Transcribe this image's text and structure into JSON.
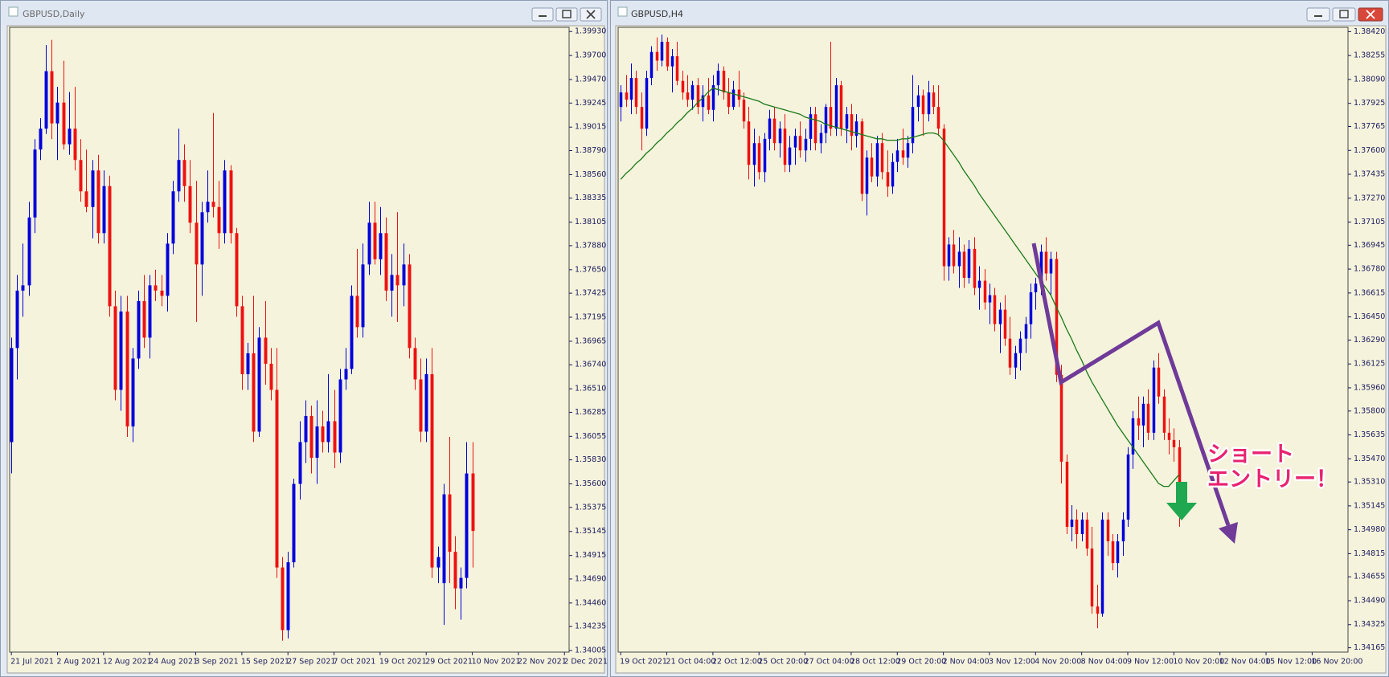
{
  "chart_data": [
    {
      "type": "candlestick",
      "title": "GBPUSD,Daily",
      "up_color": "#0000dd",
      "down_color": "#ee1111",
      "background": "#f5f3dc",
      "xlim": [
        -0.3,
        96.8
      ],
      "ylim": [
        1.3399,
        1.3997
      ],
      "xticks": [
        {
          "value": 0,
          "label": "21 Jul 2021"
        },
        {
          "value": 8,
          "label": "2 Aug 2021"
        },
        {
          "value": 16,
          "label": "12 Aug 2021"
        },
        {
          "value": 24,
          "label": "24 Aug 2021"
        },
        {
          "value": 32,
          "label": "3 Sep 2021"
        },
        {
          "value": 40,
          "label": "15 Sep 2021"
        },
        {
          "value": 48,
          "label": "27 Sep 2021"
        },
        {
          "value": 56,
          "label": "7 Oct 2021"
        },
        {
          "value": 64,
          "label": "19 Oct 2021"
        },
        {
          "value": 72,
          "label": "29 Oct 2021"
        },
        {
          "value": 80,
          "label": "10 Nov 2021"
        },
        {
          "value": 88,
          "label": "22 Nov 2021"
        },
        {
          "value": 96,
          "label": "2 Dec 2021"
        }
      ],
      "yticks": [
        {
          "value": 1.3993,
          "label": "1.39930"
        },
        {
          "value": 1.397,
          "label": "1.39700"
        },
        {
          "value": 1.3947,
          "label": "1.39470"
        },
        1.39245,
        1.39015,
        {
          "value": 1.3879,
          "label": "1.38790"
        },
        {
          "value": 1.3856,
          "label": "1.38560"
        },
        1.38335,
        1.38105,
        {
          "value": 1.3788,
          "label": "1.37880"
        },
        {
          "value": 1.3765,
          "label": "1.37650"
        },
        1.37425,
        1.37195,
        1.36965,
        {
          "value": 1.3674,
          "label": "1.36740"
        },
        {
          "value": 1.3651,
          "label": "1.36510"
        },
        1.36285,
        1.36055,
        {
          "value": 1.3583,
          "label": "1.35830"
        },
        {
          "value": 1.356,
          "label": "1.35600"
        },
        1.35375,
        1.35145,
        1.34915,
        {
          "value": 1.3469,
          "label": "1.34690"
        },
        {
          "value": 1.3446,
          "label": "1.34460"
        },
        1.34235,
        1.34005
      ],
      "open": [
        1.36,
        1.369,
        1.3745,
        1.375,
        1.3815,
        1.388,
        1.39,
        1.3955,
        1.3905,
        1.3925,
        1.3885,
        1.39,
        1.387,
        1.384,
        1.3825,
        1.386,
        1.38,
        1.3845,
        1.373,
        1.365,
        1.3725,
        1.3615,
        1.368,
        1.3735,
        1.37,
        1.375,
        1.3745,
        1.374,
        1.379,
        1.384,
        1.387,
        1.3845,
        1.381,
        1.377,
        1.382,
        1.383,
        1.3825,
        1.38,
        1.386,
        1.38,
        1.373,
        1.3665,
        1.3685,
        1.361,
        1.37,
        1.3675,
        1.365,
        1.348,
        1.342,
        1.3485,
        1.356,
        1.36,
        1.3625,
        1.3585,
        1.3615,
        1.36,
        1.362,
        1.359,
        1.366,
        1.367,
        1.374,
        1.371,
        1.377,
        1.381,
        1.3775,
        1.38,
        1.3745,
        1.376,
        1.375,
        1.377,
        1.369,
        1.366,
        1.361,
        1.3665,
        1.348,
        1.3465,
        1.355,
        1.3495,
        1.346,
        1.347,
        1.357
      ],
      "high": [
        1.37,
        1.376,
        1.379,
        1.383,
        1.389,
        1.391,
        1.398,
        1.3985,
        1.394,
        1.3965,
        1.3935,
        1.394,
        1.389,
        1.388,
        1.387,
        1.3875,
        1.386,
        1.3855,
        1.3745,
        1.374,
        1.374,
        1.369,
        1.3745,
        1.376,
        1.376,
        1.3765,
        1.376,
        1.38,
        1.385,
        1.39,
        1.3885,
        1.387,
        1.385,
        1.383,
        1.386,
        1.3915,
        1.385,
        1.387,
        1.3865,
        1.3805,
        1.374,
        1.3695,
        1.374,
        1.371,
        1.3735,
        1.369,
        1.369,
        1.349,
        1.3495,
        1.3565,
        1.362,
        1.364,
        1.3635,
        1.364,
        1.363,
        1.3665,
        1.365,
        1.367,
        1.369,
        1.375,
        1.3785,
        1.379,
        1.383,
        1.383,
        1.3825,
        1.3815,
        1.378,
        1.382,
        1.379,
        1.378,
        1.37,
        1.368,
        1.368,
        1.369,
        1.35,
        1.356,
        1.3605,
        1.351,
        1.348,
        1.36,
        1.36
      ],
      "low": [
        1.357,
        1.366,
        1.372,
        1.374,
        1.38,
        1.387,
        1.3895,
        1.389,
        1.387,
        1.388,
        1.3875,
        1.386,
        1.383,
        1.382,
        1.3795,
        1.379,
        1.379,
        1.372,
        1.364,
        1.363,
        1.3605,
        1.36,
        1.367,
        1.369,
        1.368,
        1.3735,
        1.373,
        1.3725,
        1.378,
        1.383,
        1.383,
        1.38,
        1.3715,
        1.374,
        1.381,
        1.3815,
        1.3785,
        1.379,
        1.379,
        1.372,
        1.365,
        1.365,
        1.36,
        1.3605,
        1.3655,
        1.364,
        1.347,
        1.341,
        1.3412,
        1.348,
        1.3545,
        1.358,
        1.357,
        1.356,
        1.359,
        1.359,
        1.3575,
        1.358,
        1.365,
        1.3665,
        1.37,
        1.37,
        1.376,
        1.377,
        1.376,
        1.3735,
        1.372,
        1.3715,
        1.373,
        1.368,
        1.365,
        1.36,
        1.36,
        1.347,
        1.3465,
        1.3425,
        1.3465,
        1.344,
        1.343,
        1.346,
        1.348
      ],
      "close": [
        1.369,
        1.3745,
        1.375,
        1.3815,
        1.388,
        1.39,
        1.3955,
        1.3905,
        1.3925,
        1.3885,
        1.39,
        1.387,
        1.384,
        1.3825,
        1.386,
        1.38,
        1.3845,
        1.373,
        1.365,
        1.3725,
        1.3615,
        1.368,
        1.3735,
        1.37,
        1.375,
        1.3745,
        1.374,
        1.379,
        1.384,
        1.387,
        1.3845,
        1.381,
        1.377,
        1.382,
        1.383,
        1.3825,
        1.38,
        1.386,
        1.38,
        1.373,
        1.3665,
        1.3685,
        1.361,
        1.37,
        1.3675,
        1.365,
        1.348,
        1.342,
        1.3485,
        1.356,
        1.36,
        1.3625,
        1.3585,
        1.3615,
        1.36,
        1.362,
        1.359,
        1.366,
        1.367,
        1.374,
        1.371,
        1.377,
        1.381,
        1.3775,
        1.38,
        1.3745,
        1.376,
        1.375,
        1.377,
        1.369,
        1.366,
        1.361,
        1.3665,
        1.348,
        1.349,
        1.355,
        1.3495,
        1.346,
        1.347,
        1.357,
        1.3515
      ]
    },
    {
      "type": "candlestick",
      "title": "GBPUSD,H4",
      "up_color": "#0000dd",
      "down_color": "#ee1111",
      "background": "#f5f3dc",
      "xlim": [
        -0.5,
        142
      ],
      "ylim": [
        1.34135,
        1.3845
      ],
      "xticks": [
        {
          "value": 0,
          "label": "19 Oct 2021"
        },
        {
          "value": 9,
          "label": "21 Oct 04:00"
        },
        {
          "value": 18,
          "label": "22 Oct 12:00"
        },
        {
          "value": 27,
          "label": "25 Oct 20:00"
        },
        {
          "value": 36,
          "label": "27 Oct 04:00"
        },
        {
          "value": 45,
          "label": "28 Oct 12:00"
        },
        {
          "value": 54,
          "label": "29 Oct 20:00"
        },
        {
          "value": 63,
          "label": "2 Nov 04:00"
        },
        {
          "value": 72,
          "label": "3 Nov 12:00"
        },
        {
          "value": 81,
          "label": "4 Nov 20:00"
        },
        {
          "value": 90,
          "label": "8 Nov 04:00"
        },
        {
          "value": 99,
          "label": "9 Nov 12:00"
        },
        {
          "value": 108,
          "label": "10 Nov 20:00"
        },
        {
          "value": 117,
          "label": "12 Nov 04:00"
        },
        {
          "value": 126,
          "label": "15 Nov 12:00"
        },
        {
          "value": 135,
          "label": "16 Nov 20:00"
        }
      ],
      "yticks": [
        {
          "value": 1.3842,
          "label": "1.38420"
        },
        1.38255,
        {
          "value": 1.3809,
          "label": "1.38090"
        },
        1.37925,
        1.37765,
        {
          "value": 1.376,
          "label": "1.37600"
        },
        1.37435,
        {
          "value": 1.3727,
          "label": "1.37270"
        },
        1.37105,
        1.36945,
        {
          "value": 1.3678,
          "label": "1.36780"
        },
        1.36615,
        {
          "value": 1.3645,
          "label": "1.36450"
        },
        {
          "value": 1.3629,
          "label": "1.36290"
        },
        1.36125,
        {
          "value": 1.3596,
          "label": "1.35960"
        },
        {
          "value": 1.358,
          "label": "1.35800"
        },
        1.35635,
        {
          "value": 1.3547,
          "label": "1.35470"
        },
        {
          "value": 1.3531,
          "label": "1.35310"
        },
        1.35145,
        {
          "value": 1.3498,
          "label": "1.34980"
        },
        1.34815,
        1.34655,
        {
          "value": 1.3449,
          "label": "1.34490"
        },
        1.34325,
        1.34165
      ],
      "open": [
        1.379,
        1.38,
        1.3795,
        1.381,
        1.379,
        1.3775,
        1.381,
        1.3828,
        1.3822,
        1.3835,
        1.3818,
        1.3825,
        1.3808,
        1.38,
        1.3795,
        1.3805,
        1.379,
        1.3798,
        1.3788,
        1.3805,
        1.3815,
        1.38,
        1.379,
        1.3802,
        1.3795,
        1.378,
        1.375,
        1.3765,
        1.3745,
        1.3768,
        1.3782,
        1.3765,
        1.3775,
        1.375,
        1.3762,
        1.377,
        1.376,
        1.3768,
        1.3785,
        1.3765,
        1.3772,
        1.379,
        1.3775,
        1.3805,
        1.3775,
        1.3785,
        1.377,
        1.378,
        1.373,
        1.3755,
        1.3742,
        1.3765,
        1.3745,
        1.3735,
        1.3752,
        1.376,
        1.3755,
        1.3765,
        1.379,
        1.3798,
        1.3785,
        1.38,
        1.379,
        1.3775,
        1.368,
        1.3695,
        1.368,
        1.369,
        1.3672,
        1.3692,
        1.3665,
        1.367,
        1.3655,
        1.366,
        1.364,
        1.365,
        1.363,
        1.361,
        1.362,
        1.363,
        1.364,
        1.3662,
        1.3668,
        1.369,
        1.3675,
        1.3685,
        1.3605,
        1.3545,
        1.35,
        1.3505,
        1.3495,
        1.3505,
        1.3485,
        1.3445,
        1.344,
        1.3505,
        1.349,
        1.3475,
        1.349,
        1.3505,
        1.355,
        1.3575,
        1.357,
        1.3585,
        1.3565,
        1.361,
        1.359,
        1.3565,
        1.356,
        1.3555
      ],
      "high": [
        1.3805,
        1.3812,
        1.382,
        1.3815,
        1.38,
        1.3815,
        1.3832,
        1.3838,
        1.384,
        1.3838,
        1.383,
        1.3835,
        1.3815,
        1.3812,
        1.3808,
        1.381,
        1.3805,
        1.381,
        1.3812,
        1.382,
        1.3818,
        1.381,
        1.3808,
        1.3815,
        1.38,
        1.379,
        1.3775,
        1.377,
        1.3772,
        1.3788,
        1.379,
        1.378,
        1.3785,
        1.377,
        1.3775,
        1.378,
        1.3775,
        1.379,
        1.379,
        1.3778,
        1.3792,
        1.3835,
        1.381,
        1.3808,
        1.379,
        1.3792,
        1.3785,
        1.3782,
        1.376,
        1.3765,
        1.377,
        1.3772,
        1.376,
        1.3758,
        1.3768,
        1.3775,
        1.377,
        1.3812,
        1.3805,
        1.3802,
        1.3808,
        1.3805,
        1.3805,
        1.3778,
        1.37,
        1.3705,
        1.37,
        1.3695,
        1.3698,
        1.37,
        1.368,
        1.3678,
        1.3668,
        1.3665,
        1.3655,
        1.366,
        1.3645,
        1.3625,
        1.3635,
        1.3645,
        1.3668,
        1.3672,
        1.3695,
        1.37,
        1.369,
        1.369,
        1.3612,
        1.355,
        1.3515,
        1.3512,
        1.351,
        1.351,
        1.35,
        1.346,
        1.351,
        1.351,
        1.3495,
        1.3495,
        1.351,
        1.3555,
        1.358,
        1.359,
        1.359,
        1.3595,
        1.3615,
        1.362,
        1.3595,
        1.3575,
        1.3568,
        1.356
      ],
      "low": [
        1.378,
        1.379,
        1.3785,
        1.3785,
        1.376,
        1.377,
        1.3805,
        1.3815,
        1.3818,
        1.3815,
        1.38,
        1.3805,
        1.3795,
        1.379,
        1.3788,
        1.3785,
        1.378,
        1.3785,
        1.378,
        1.3798,
        1.3795,
        1.3785,
        1.3788,
        1.379,
        1.3775,
        1.374,
        1.3735,
        1.374,
        1.3738,
        1.376,
        1.376,
        1.3755,
        1.3745,
        1.3745,
        1.375,
        1.3755,
        1.3752,
        1.376,
        1.376,
        1.3758,
        1.3765,
        1.377,
        1.377,
        1.377,
        1.3765,
        1.376,
        1.3762,
        1.3725,
        1.3715,
        1.3738,
        1.3735,
        1.374,
        1.3728,
        1.373,
        1.3745,
        1.375,
        1.3748,
        1.3758,
        1.378,
        1.377,
        1.378,
        1.3785,
        1.377,
        1.367,
        1.367,
        1.3675,
        1.3665,
        1.3665,
        1.3668,
        1.366,
        1.365,
        1.365,
        1.364,
        1.3635,
        1.362,
        1.3625,
        1.3605,
        1.3602,
        1.3608,
        1.362,
        1.363,
        1.365,
        1.366,
        1.367,
        1.366,
        1.36,
        1.353,
        1.3495,
        1.349,
        1.3485,
        1.349,
        1.348,
        1.344,
        1.343,
        1.3438,
        1.348,
        1.347,
        1.3465,
        1.348,
        1.35,
        1.354,
        1.356,
        1.3555,
        1.356,
        1.356,
        1.3585,
        1.356,
        1.355,
        1.3545,
        1.35
      ],
      "close": [
        1.38,
        1.3795,
        1.381,
        1.379,
        1.3775,
        1.381,
        1.3828,
        1.3822,
        1.3835,
        1.3818,
        1.3825,
        1.3808,
        1.38,
        1.3795,
        1.3805,
        1.379,
        1.3798,
        1.3788,
        1.3805,
        1.3815,
        1.38,
        1.379,
        1.3802,
        1.3795,
        1.378,
        1.375,
        1.3765,
        1.3745,
        1.3768,
        1.3782,
        1.3765,
        1.3775,
        1.375,
        1.3762,
        1.377,
        1.376,
        1.3768,
        1.3785,
        1.3765,
        1.3772,
        1.379,
        1.3775,
        1.3805,
        1.3775,
        1.3785,
        1.377,
        1.378,
        1.373,
        1.3755,
        1.3742,
        1.3765,
        1.3745,
        1.3735,
        1.3752,
        1.376,
        1.3755,
        1.3765,
        1.379,
        1.3798,
        1.3785,
        1.38,
        1.379,
        1.3775,
        1.368,
        1.3695,
        1.368,
        1.369,
        1.3672,
        1.3692,
        1.3665,
        1.367,
        1.3655,
        1.366,
        1.364,
        1.365,
        1.363,
        1.361,
        1.362,
        1.363,
        1.364,
        1.3662,
        1.3668,
        1.369,
        1.3675,
        1.3685,
        1.3605,
        1.3545,
        1.35,
        1.3505,
        1.3495,
        1.3505,
        1.3485,
        1.3445,
        1.344,
        1.3505,
        1.349,
        1.3475,
        1.349,
        1.3505,
        1.355,
        1.3575,
        1.357,
        1.3585,
        1.3565,
        1.361,
        1.359,
        1.3565,
        1.356,
        1.3555,
        1.351
      ],
      "overlays": [
        {
          "color": "#1a7a1a",
          "values": [
            1.374,
            1.3744,
            1.3747,
            1.3751,
            1.3754,
            1.3758,
            1.3761,
            1.3765,
            1.3768,
            1.3772,
            1.3775,
            1.3779,
            1.3782,
            1.3786,
            1.3789,
            1.3793,
            1.3796,
            1.38,
            1.3803,
            1.3802,
            1.3801,
            1.38,
            1.3799,
            1.3798,
            1.3797,
            1.3796,
            1.3795,
            1.3794,
            1.3792,
            1.3791,
            1.379,
            1.3789,
            1.3788,
            1.3787,
            1.3786,
            1.3785,
            1.3783,
            1.3782,
            1.3781,
            1.378,
            1.3778,
            1.3777,
            1.3776,
            1.3775,
            1.3774,
            1.3773,
            1.3772,
            1.3771,
            1.377,
            1.3769,
            1.3768,
            1.3768,
            1.3767,
            1.3767,
            1.3767,
            1.3768,
            1.3768,
            1.3769,
            1.377,
            1.3771,
            1.3772,
            1.3772,
            1.3771,
            1.3767,
            1.3762,
            1.3757,
            1.3752,
            1.3746,
            1.3741,
            1.3736,
            1.373,
            1.3725,
            1.372,
            1.3715,
            1.371,
            1.3705,
            1.37,
            1.3695,
            1.369,
            1.3685,
            1.368,
            1.3675,
            1.367,
            1.3665,
            1.366,
            1.3652,
            1.3645,
            1.3637,
            1.363,
            1.3622,
            1.3615,
            1.3607,
            1.36,
            1.3594,
            1.3588,
            1.3582,
            1.3576,
            1.357,
            1.3565,
            1.356,
            1.3555,
            1.355,
            1.3545,
            1.354,
            1.3535,
            1.353,
            1.3528,
            1.3528,
            1.3532,
            1.3536
          ]
        }
      ],
      "annotations": [
        "ショート",
        "エントリー！"
      ]
    }
  ]
}
